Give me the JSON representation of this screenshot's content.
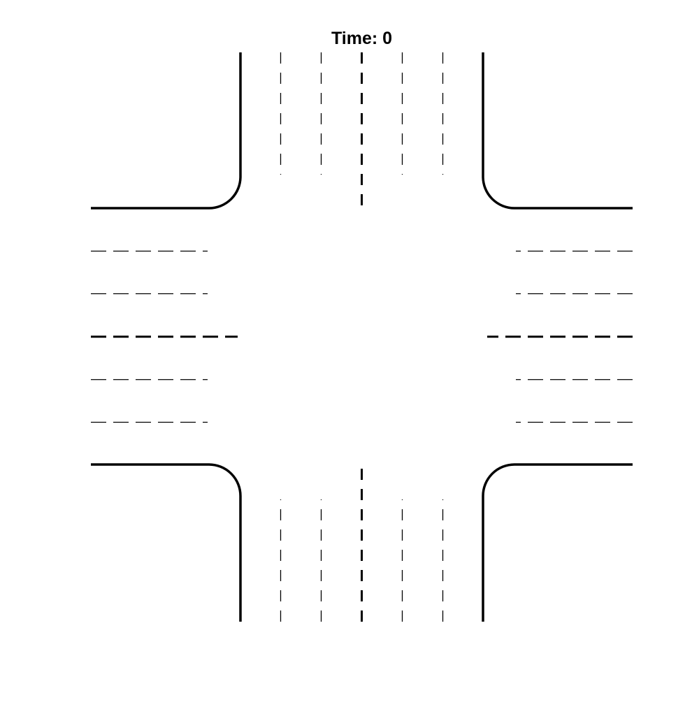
{
  "header": {
    "time_prefix": "Time:",
    "time_value": "0"
  },
  "colors": {
    "background": "#ffffff",
    "road_edge": "#000000",
    "lane_marking": "#000000"
  },
  "scene": {
    "type": "four-way intersection",
    "roads": [
      "north",
      "south",
      "east",
      "west"
    ],
    "lanes_per_direction": 3
  }
}
